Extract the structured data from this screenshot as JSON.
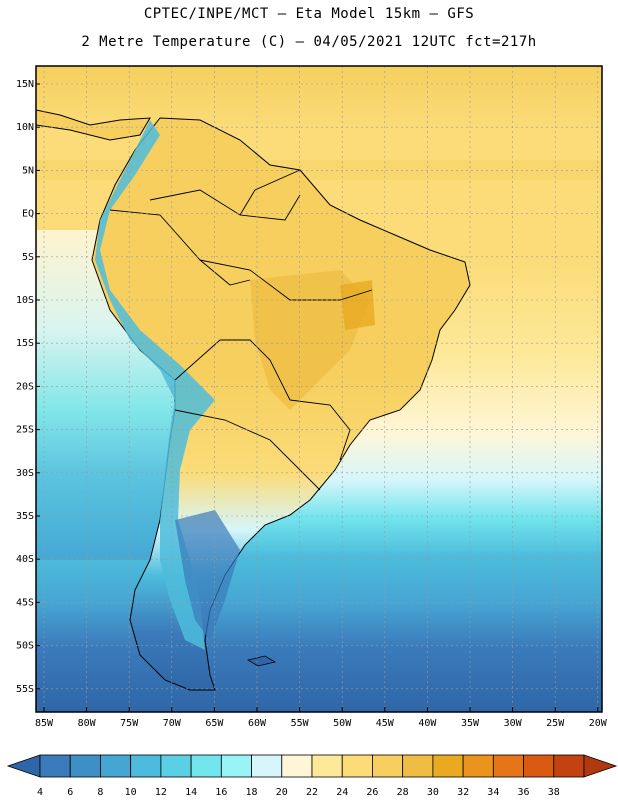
{
  "header": {
    "title_line1": "CPTEC/INPE/MCT —  Eta Model 15km — GFS",
    "title_line2": "2 Metre Temperature (C) — 04/05/2021 12UTC fct=217h"
  },
  "axes": {
    "lat_labels": [
      "15N",
      "10N",
      "5N",
      "EQ",
      "5S",
      "10S",
      "15S",
      "20S",
      "25S",
      "30S",
      "35S",
      "40S",
      "45S",
      "50S",
      "55S"
    ],
    "lon_labels": [
      "85W",
      "80W",
      "75W",
      "70W",
      "65W",
      "60W",
      "55W",
      "50W",
      "45W",
      "40W",
      "35W",
      "30W",
      "25W",
      "20W"
    ]
  },
  "colorbar": {
    "labels": [
      "4",
      "6",
      "8",
      "10",
      "12",
      "14",
      "16",
      "18",
      "20",
      "22",
      "24",
      "26",
      "28",
      "30",
      "32",
      "34",
      "36",
      "38"
    ],
    "colors": [
      "#2f66a8",
      "#3b7bbb",
      "#3f8fc7",
      "#46a6d3",
      "#4dbcdc",
      "#5bd0e4",
      "#72e4ec",
      "#98f4f7",
      "#d6f6fb",
      "#fff6d8",
      "#fde99a",
      "#fbdc79",
      "#f6cf5e",
      "#efbd43",
      "#e9aa22",
      "#ea941d",
      "#e67519",
      "#db5a12",
      "#c44210",
      "#b0390d"
    ]
  }
}
